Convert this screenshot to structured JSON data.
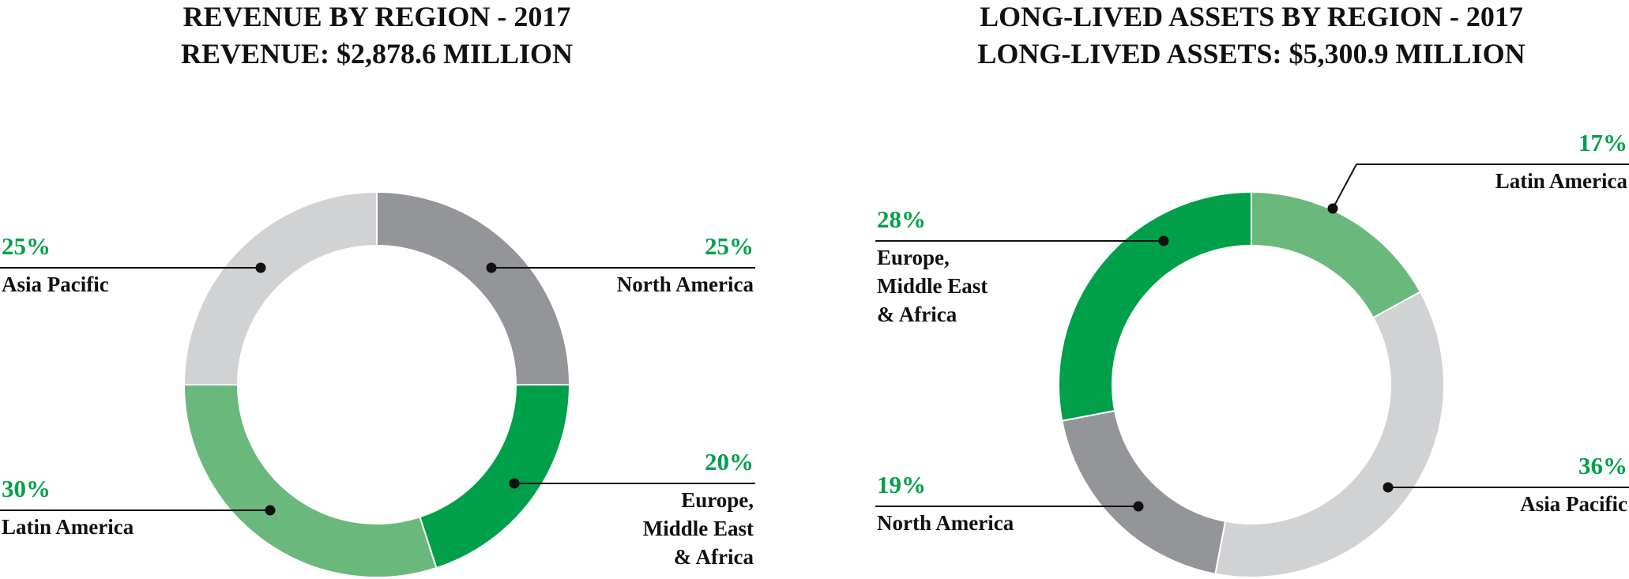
{
  "colors": {
    "north_america": "#939598",
    "europe_me_africa": "#00a04a",
    "latin_america": "#6ab87b",
    "asia_pacific": "#d1d2d4",
    "percent_text": "#00a04a",
    "leader_line": "#111111"
  },
  "chart_data": [
    {
      "type": "pie",
      "donut": true,
      "title": "REVENUE BY REGION - 2017",
      "subtitle": "REVENUE: $2,878.6 MILLION",
      "slices": [
        {
          "label": "North America",
          "value": 25,
          "value_label": "25%",
          "color_key": "north_america"
        },
        {
          "label": "Europe,\nMiddle East\n& Africa",
          "value": 20,
          "value_label": "20%",
          "color_key": "europe_me_africa"
        },
        {
          "label": "Latin America",
          "value": 30,
          "value_label": "30%",
          "color_key": "latin_america"
        },
        {
          "label": "Asia Pacific",
          "value": 25,
          "value_label": "25%",
          "color_key": "asia_pacific"
        }
      ]
    },
    {
      "type": "pie",
      "donut": true,
      "title": "LONG-LIVED ASSETS BY REGION - 2017",
      "subtitle": "LONG-LIVED ASSETS: $5,300.9 MILLION",
      "slices": [
        {
          "label": "Latin America",
          "value": 17,
          "value_label": "17%",
          "color_key": "latin_america"
        },
        {
          "label": "Asia Pacific",
          "value": 36,
          "value_label": "36%",
          "color_key": "asia_pacific"
        },
        {
          "label": "North America",
          "value": 19,
          "value_label": "19%",
          "color_key": "north_america"
        },
        {
          "label": "Europe,\nMiddle East\n& Africa",
          "value": 28,
          "value_label": "28%",
          "color_key": "europe_me_africa"
        }
      ]
    }
  ]
}
